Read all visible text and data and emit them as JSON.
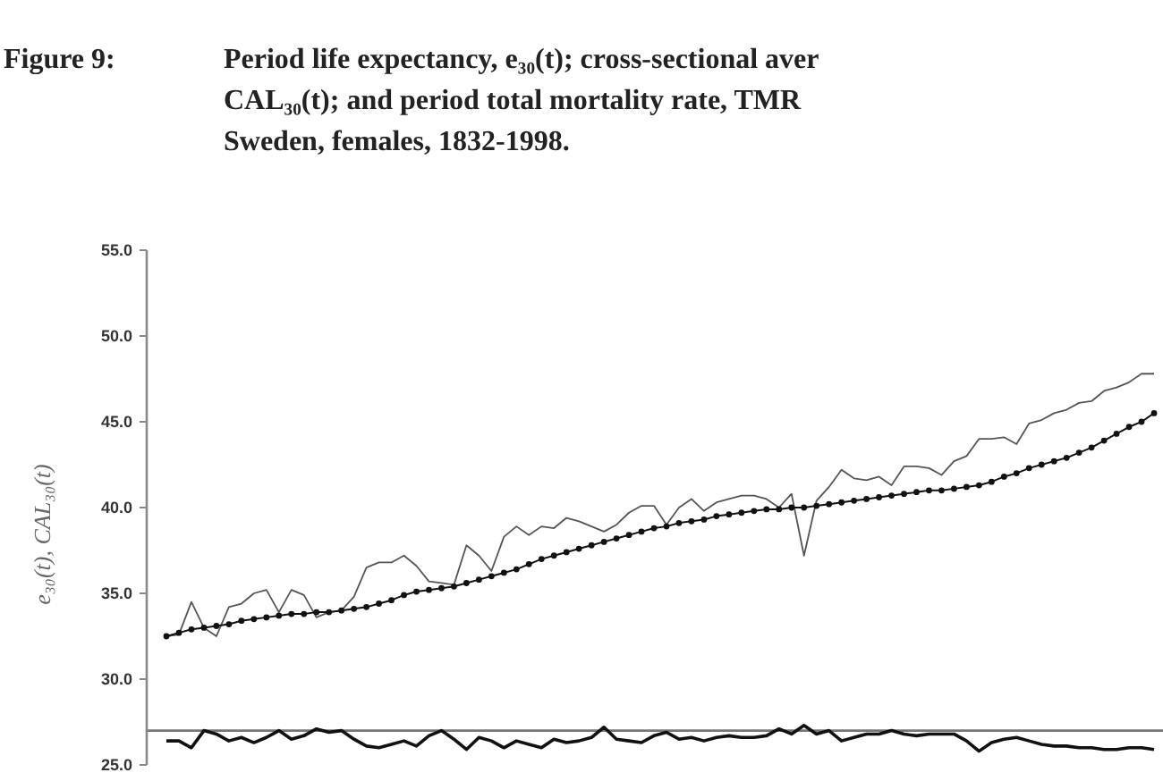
{
  "chart_data": {
    "type": "line",
    "title": "Figure 9:\nPeriod life expectancy, e₃₀(t); cross-sectional aver\nCAL₃₀(t); and period total mortality rate, TMR\nSweden, females, 1832-1998.",
    "ylabel": "e₃₀(t), CAL₃₀(t)",
    "categories": [
      null,
      null,
      null,
      null,
      null,
      null,
      null,
      null,
      null,
      null,
      null,
      null,
      null,
      null,
      null,
      null,
      null,
      null,
      null,
      null,
      null,
      null,
      null,
      null,
      null,
      null,
      null,
      null,
      null,
      null,
      null,
      null,
      null,
      null,
      null,
      null,
      null,
      null,
      null,
      null,
      null,
      null,
      null,
      null,
      null,
      null,
      null,
      null,
      null,
      null,
      null,
      null,
      null,
      null,
      null,
      null,
      null,
      null,
      null,
      null,
      null,
      null,
      null,
      null,
      null,
      null,
      null,
      null,
      null,
      null,
      null,
      null,
      null,
      null,
      null,
      null,
      null,
      null,
      null,
      null
    ],
    "series": [
      {
        "color": "#555555",
        "marker": "none",
        "values": [
          32.5,
          32.6,
          34.5,
          33.0,
          32.5,
          34.2,
          34.4,
          35.0,
          35.2,
          33.9,
          35.2,
          34.9,
          33.6,
          33.9,
          34.0,
          34.8,
          36.5,
          36.8,
          36.8,
          37.2,
          36.6,
          35.7,
          35.6,
          35.5,
          37.8,
          37.2,
          36.3,
          38.3,
          38.9,
          38.4,
          38.9,
          38.8,
          39.4,
          39.2,
          38.9,
          38.6,
          39.0,
          39.7,
          40.1,
          40.1,
          39.0,
          40.0,
          40.5,
          39.8,
          40.3,
          40.5,
          40.7,
          40.7,
          40.5,
          40.0,
          40.8,
          37.2,
          40.4,
          41.2,
          42.2,
          41.7,
          41.6,
          41.8,
          41.3,
          42.4,
          42.4,
          42.3,
          41.9,
          42.7,
          43.0,
          44.0,
          44.0,
          44.1,
          43.7,
          44.9,
          45.1,
          45.5,
          45.7,
          46.1,
          46.2,
          46.8,
          47.0,
          47.3,
          47.8,
          47.8
        ]
      },
      {
        "color": "#111111",
        "marker": "circle",
        "values": [
          32.5,
          32.7,
          32.9,
          33.0,
          33.1,
          33.2,
          33.4,
          33.5,
          33.6,
          33.7,
          33.8,
          33.8,
          33.9,
          33.9,
          34.0,
          34.1,
          34.2,
          34.4,
          34.6,
          34.9,
          35.1,
          35.2,
          35.3,
          35.4,
          35.6,
          35.8,
          36.0,
          36.2,
          36.4,
          36.7,
          37.0,
          37.2,
          37.4,
          37.6,
          37.8,
          38.0,
          38.2,
          38.4,
          38.6,
          38.8,
          38.9,
          39.1,
          39.2,
          39.3,
          39.5,
          39.6,
          39.7,
          39.8,
          39.9,
          39.9,
          40.0,
          40.0,
          40.1,
          40.2,
          40.3,
          40.4,
          40.5,
          40.6,
          40.7,
          40.8,
          40.9,
          41.0,
          41.0,
          41.1,
          41.2,
          41.3,
          41.5,
          41.8,
          42.0,
          42.3,
          42.5,
          42.7,
          42.9,
          43.2,
          43.5,
          43.9,
          44.3,
          44.7,
          45.0,
          45.5
        ]
      },
      {
        "color": "#111111",
        "marker": "none",
        "values": [
          26.4,
          26.4,
          26.0,
          27.0,
          26.8,
          26.4,
          26.6,
          26.3,
          26.6,
          27.0,
          26.5,
          26.7,
          27.1,
          26.9,
          27.0,
          26.5,
          26.1,
          26.0,
          26.2,
          26.4,
          26.1,
          26.7,
          27.0,
          26.5,
          25.9,
          26.6,
          26.4,
          26.0,
          26.4,
          26.2,
          26.0,
          26.5,
          26.3,
          26.4,
          26.6,
          27.2,
          26.5,
          26.4,
          26.3,
          26.7,
          26.9,
          26.5,
          26.6,
          26.4,
          26.6,
          26.7,
          26.6,
          26.6,
          26.7,
          27.1,
          26.8,
          27.3,
          26.8,
          27.0,
          26.4,
          26.6,
          26.8,
          26.8,
          27.0,
          26.8,
          26.7,
          26.8,
          26.8,
          26.8,
          26.4,
          25.8,
          26.3,
          26.5,
          26.6,
          26.4,
          26.2,
          26.1,
          26.1,
          26.0,
          26.0,
          25.9,
          25.9,
          26.0,
          26.0,
          25.9
        ]
      }
    ],
    "ylim": [
      25,
      55
    ],
    "yticks": [
      {
        "value": 25,
        "label": "25.0"
      },
      {
        "value": 30,
        "label": "30.0"
      },
      {
        "value": 35,
        "label": "35.0"
      },
      {
        "value": 40,
        "label": "40.0"
      },
      {
        "value": 45,
        "label": "45.0"
      },
      {
        "value": 50,
        "label": "50.0"
      },
      {
        "value": 55,
        "label": "55.0"
      }
    ],
    "ref_lines": [
      {
        "axis": "y",
        "value": 27.0,
        "color": "#777777"
      }
    ]
  }
}
